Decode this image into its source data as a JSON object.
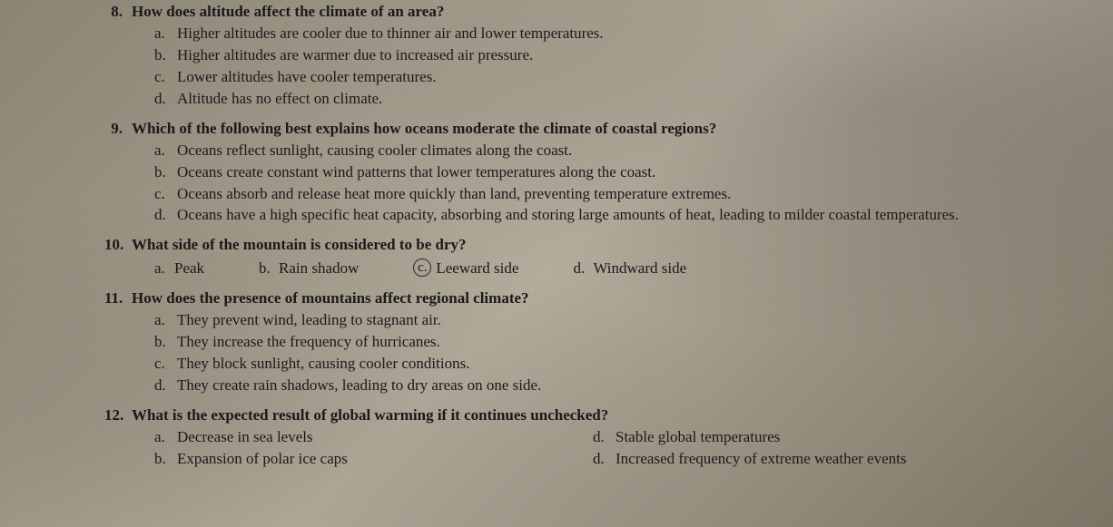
{
  "questions": [
    {
      "number": "8.",
      "text": "How does altitude affect the climate of an area?",
      "layout": "vertical",
      "options": [
        {
          "letter": "a.",
          "text": "Higher altitudes are cooler due to thinner air and lower temperatures."
        },
        {
          "letter": "b.",
          "text": "Higher altitudes are warmer due to increased air pressure."
        },
        {
          "letter": "c.",
          "text": "Lower altitudes have cooler temperatures."
        },
        {
          "letter": "d.",
          "text": "Altitude has no effect on climate."
        }
      ]
    },
    {
      "number": "9.",
      "text": "Which of the following best explains how oceans moderate the climate of coastal regions?",
      "layout": "vertical",
      "options": [
        {
          "letter": "a.",
          "text": "Oceans reflect sunlight, causing cooler climates along the coast."
        },
        {
          "letter": "b.",
          "text": "Oceans create constant wind patterns that lower temperatures along the coast."
        },
        {
          "letter": "c.",
          "text": "Oceans absorb and release heat more quickly than land, preventing temperature extremes."
        },
        {
          "letter": "d.",
          "text": "Oceans have a high specific heat capacity, absorbing and storing large amounts of heat, leading to milder coastal temperatures."
        }
      ]
    },
    {
      "number": "10.",
      "text": "What side of the mountain is considered to be dry?",
      "layout": "inline",
      "options": [
        {
          "letter": "a.",
          "text": "Peak"
        },
        {
          "letter": "b.",
          "text": "Rain shadow"
        },
        {
          "letter": "c.",
          "text": "Leeward side",
          "circled": true
        },
        {
          "letter": "d.",
          "text": "Windward side"
        }
      ]
    },
    {
      "number": "11.",
      "text": "How does the presence of mountains affect regional climate?",
      "layout": "vertical",
      "options": [
        {
          "letter": "a.",
          "text": "They prevent wind, leading to stagnant air."
        },
        {
          "letter": "b.",
          "text": "They increase the frequency of hurricanes."
        },
        {
          "letter": "c.",
          "text": "They block sunlight, causing cooler conditions."
        },
        {
          "letter": "d.",
          "text": "They create rain shadows, leading to dry areas on one side."
        }
      ]
    },
    {
      "number": "12.",
      "text": "What is the expected result of global warming if it continues unchecked?",
      "layout": "2col",
      "options_col1": [
        {
          "letter": "a.",
          "text": "Decrease in sea levels"
        },
        {
          "letter": "b.",
          "text": "Expansion of polar ice caps"
        }
      ],
      "options_col2": [
        {
          "letter": "d.",
          "text": "Stable global temperatures"
        },
        {
          "letter": "d.",
          "text": "Increased frequency of extreme weather events"
        }
      ]
    }
  ]
}
